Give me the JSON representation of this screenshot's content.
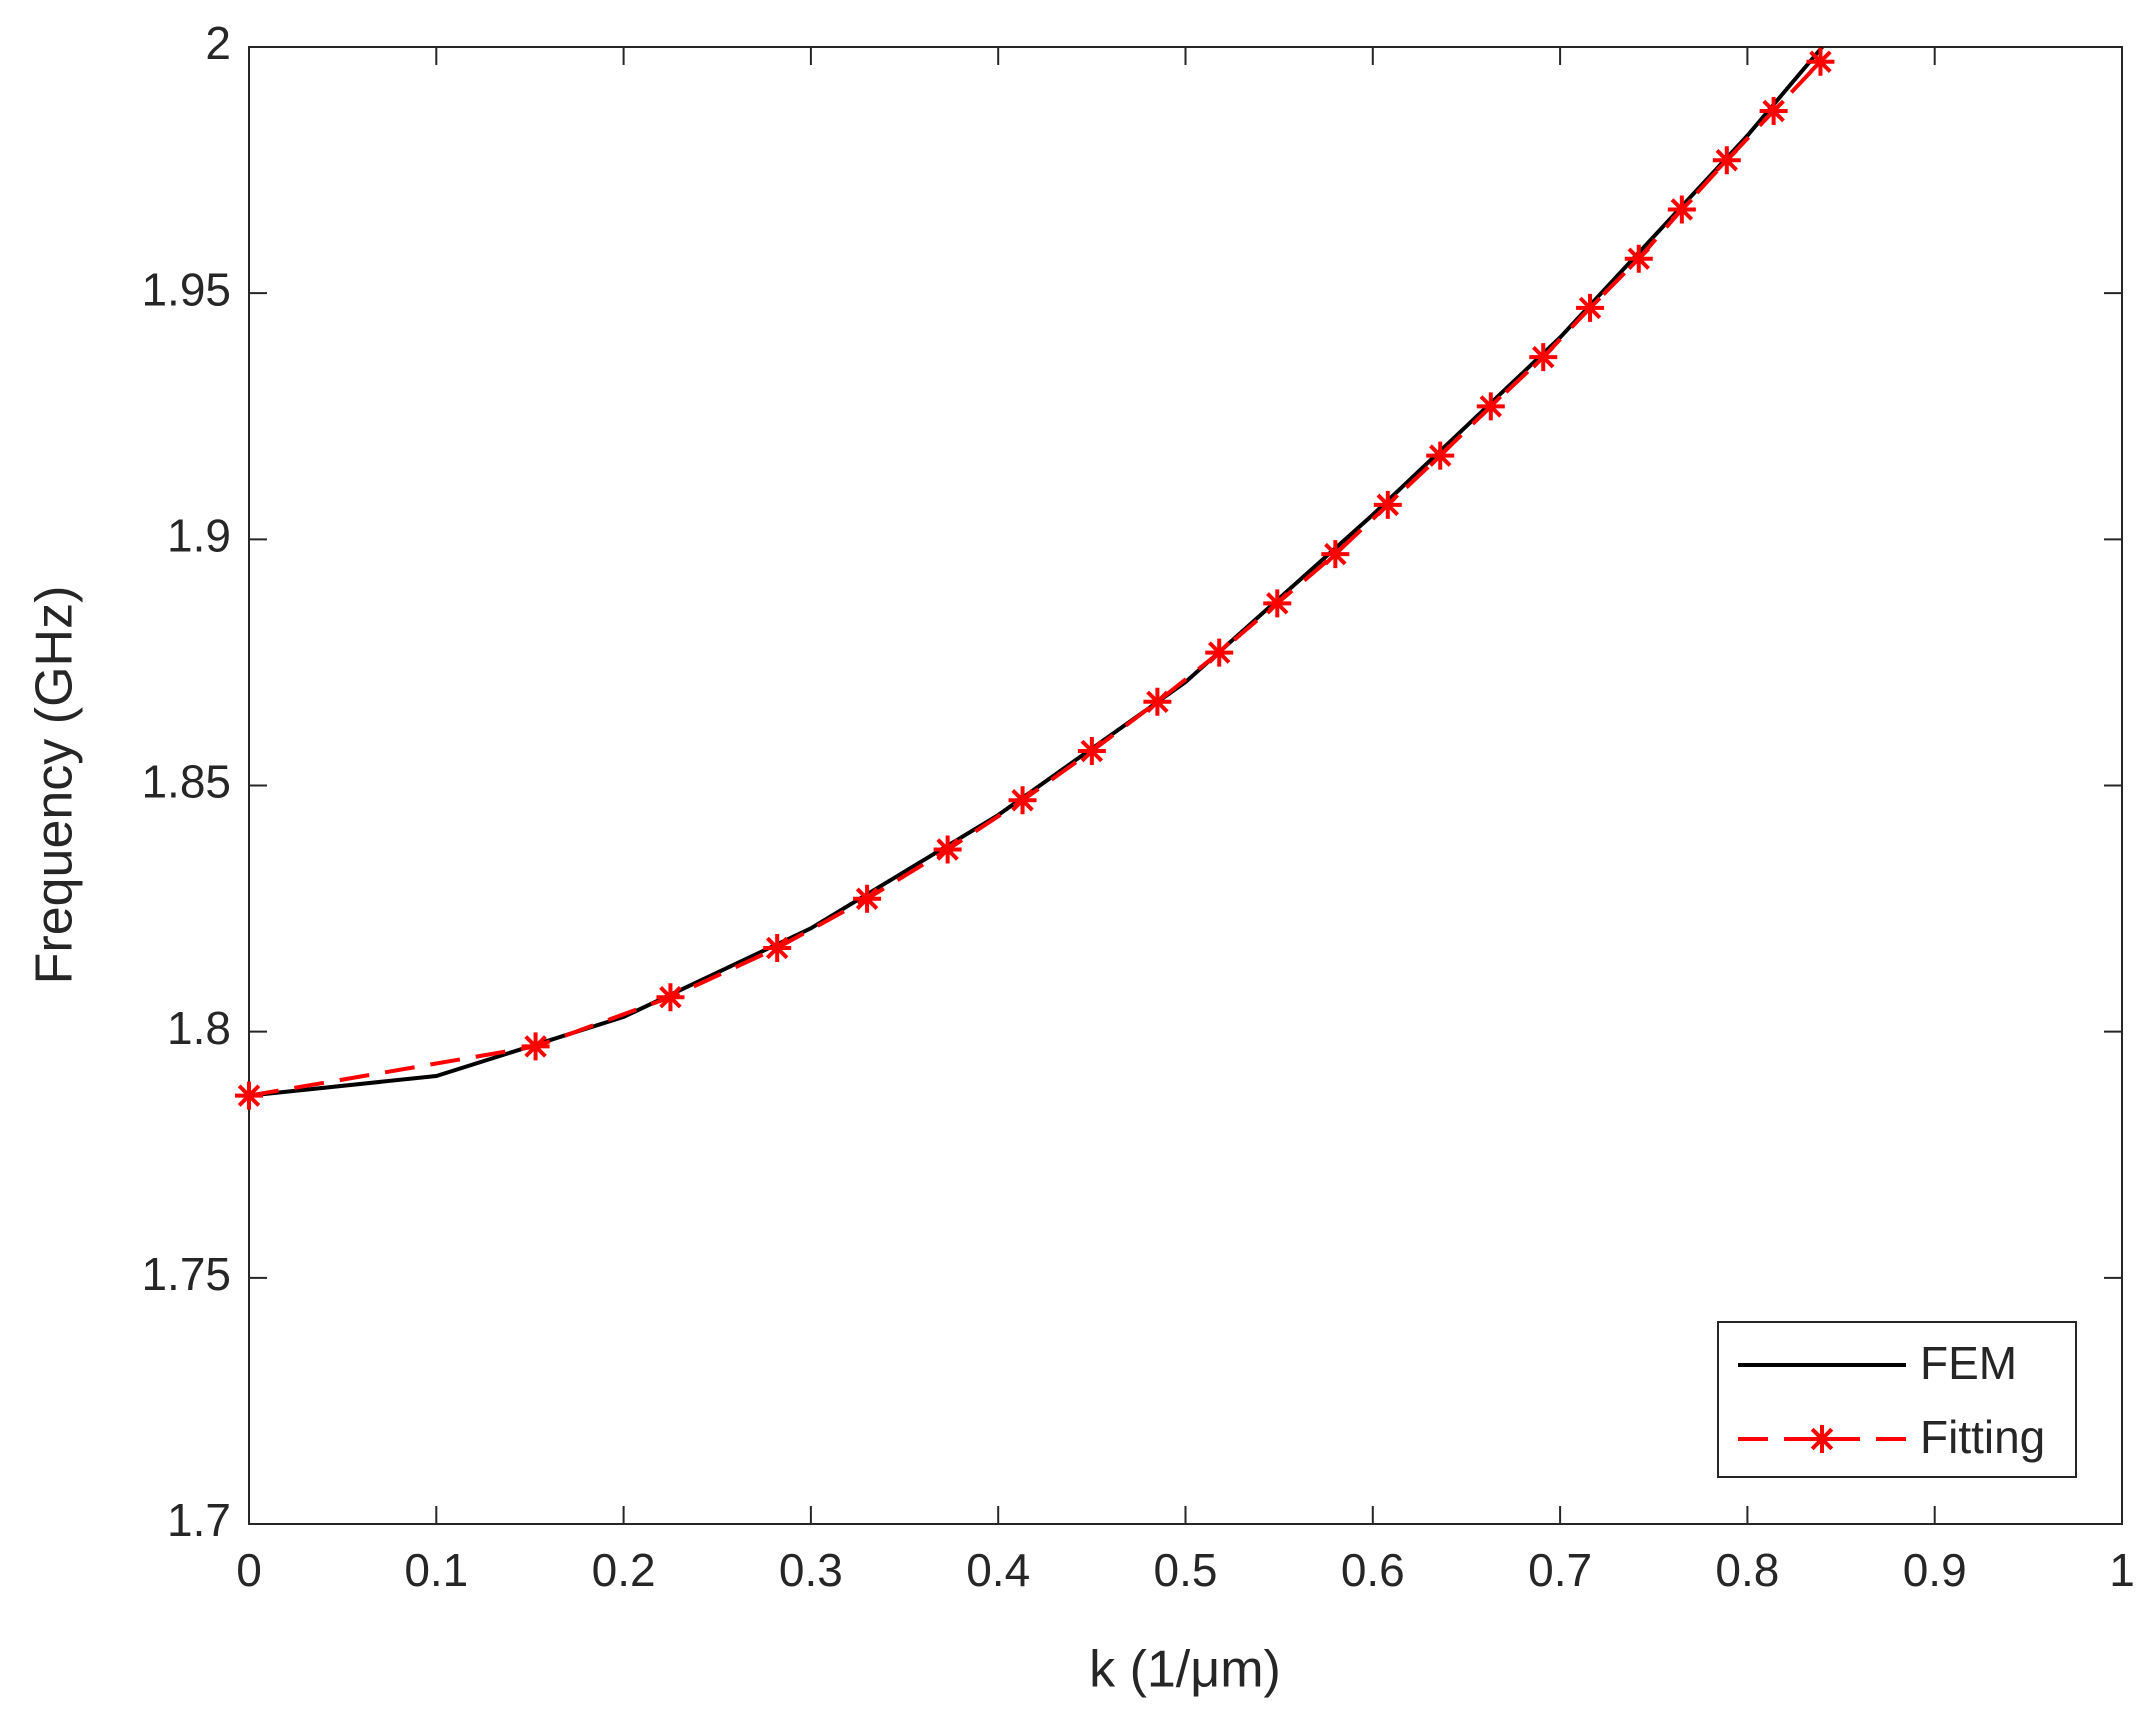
{
  "chart_data": {
    "type": "line",
    "xlabel": "k (1/μm)",
    "ylabel": "Frequency (GHz)",
    "xlim": [
      0,
      1
    ],
    "ylim": [
      1.7,
      2
    ],
    "xticks": [
      0,
      0.1,
      0.2,
      0.3,
      0.4,
      0.5,
      0.6,
      0.7,
      0.8,
      0.9,
      1
    ],
    "yticks": [
      1.7,
      1.75,
      1.8,
      1.85,
      1.9,
      1.95,
      2
    ],
    "legend": "lower right",
    "series": [
      {
        "name": "FEM",
        "color": "#000000",
        "style": "solid",
        "marker": "none",
        "x": [
          0,
          0.1,
          0.2,
          0.3,
          0.4,
          0.5,
          0.6,
          0.7,
          0.8,
          0.84
        ],
        "values": [
          1.787,
          1.791,
          1.803,
          1.821,
          1.844,
          1.871,
          1.905,
          1.941,
          1.982,
          2.0
        ]
      },
      {
        "name": "Fitting",
        "color": "#ff0000",
        "style": "dashed",
        "marker": "star",
        "x": [
          0,
          0.153,
          0.225,
          0.282,
          0.33,
          0.373,
          0.413,
          0.45,
          0.485,
          0.518,
          0.549,
          0.58,
          0.608,
          0.636,
          0.663,
          0.691,
          0.716,
          0.742,
          0.765,
          0.789,
          0.814,
          0.839
        ],
        "values": [
          1.787,
          1.797,
          1.807,
          1.817,
          1.827,
          1.837,
          1.847,
          1.857,
          1.867,
          1.877,
          1.887,
          1.897,
          1.907,
          1.917,
          1.927,
          1.937,
          1.947,
          1.957,
          1.967,
          1.977,
          1.987,
          1.997
        ]
      }
    ]
  }
}
